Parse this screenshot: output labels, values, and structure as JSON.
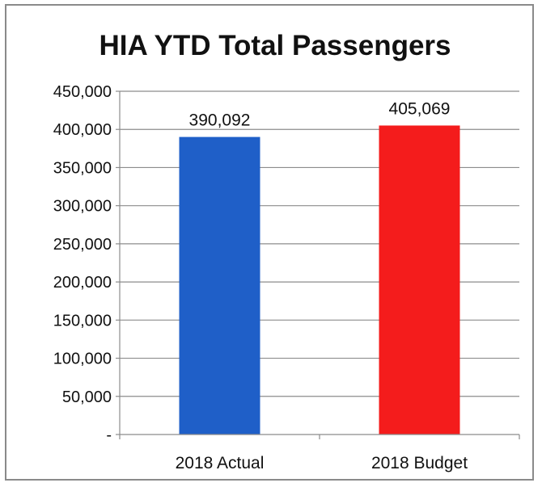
{
  "chart_data": {
    "type": "bar",
    "title": "HIA YTD Total Passengers",
    "categories": [
      "2018 Actual",
      "2018 Budget"
    ],
    "values": [
      390092,
      405069
    ],
    "data_labels": [
      "390,092",
      "405,069"
    ],
    "colors": [
      "#1f5fc8",
      "#f41c1c"
    ],
    "ylim": [
      0,
      450000
    ],
    "yticks": [
      0,
      50000,
      100000,
      150000,
      200000,
      250000,
      300000,
      350000,
      400000,
      450000
    ],
    "ytick_labels": [
      "-",
      "50,000",
      "100,000",
      "150,000",
      "200,000",
      "250,000",
      "300,000",
      "350,000",
      "400,000",
      "450,000"
    ],
    "grid": true,
    "legend": "none",
    "xlabel": "",
    "ylabel": ""
  }
}
